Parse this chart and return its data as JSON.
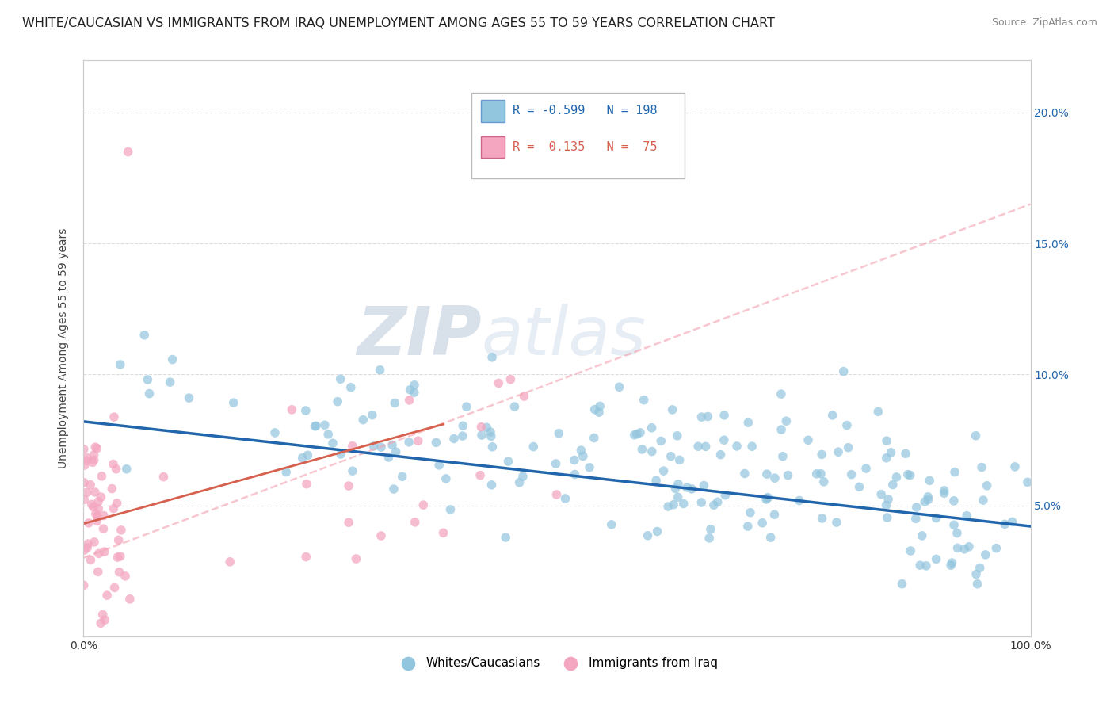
{
  "title": "WHITE/CAUCASIAN VS IMMIGRANTS FROM IRAQ UNEMPLOYMENT AMONG AGES 55 TO 59 YEARS CORRELATION CHART",
  "source": "Source: ZipAtlas.com",
  "ylabel": "Unemployment Among Ages 55 to 59 years",
  "watermark_zip": "ZIP",
  "watermark_atlas": "atlas",
  "blue_color": "#92c5de",
  "blue_line_color": "#2166ac",
  "pink_color": "#f4a6c0",
  "pink_line_color": "#d6604d",
  "pink_dash_color": "#f4a0b0",
  "xlim": [
    0,
    1.0
  ],
  "ylim": [
    0,
    0.22
  ],
  "x_ticks": [
    0,
    0.25,
    0.5,
    0.75,
    1.0
  ],
  "x_tick_labels": [
    "0.0%",
    "",
    "",
    "",
    "100.0%"
  ],
  "y_ticks": [
    0.05,
    0.1,
    0.15,
    0.2
  ],
  "y_tick_labels": [
    "5.0%",
    "10.0%",
    "15.0%",
    "20.0%"
  ],
  "grid_color": "#dddddd",
  "background_color": "#ffffff",
  "title_fontsize": 11.5,
  "tick_fontsize": 10,
  "blue_intercept": 0.082,
  "blue_slope": -0.04,
  "pink_intercept": 0.043,
  "pink_slope": 0.1,
  "pink_dash_intercept": 0.03,
  "pink_dash_slope": 0.135
}
